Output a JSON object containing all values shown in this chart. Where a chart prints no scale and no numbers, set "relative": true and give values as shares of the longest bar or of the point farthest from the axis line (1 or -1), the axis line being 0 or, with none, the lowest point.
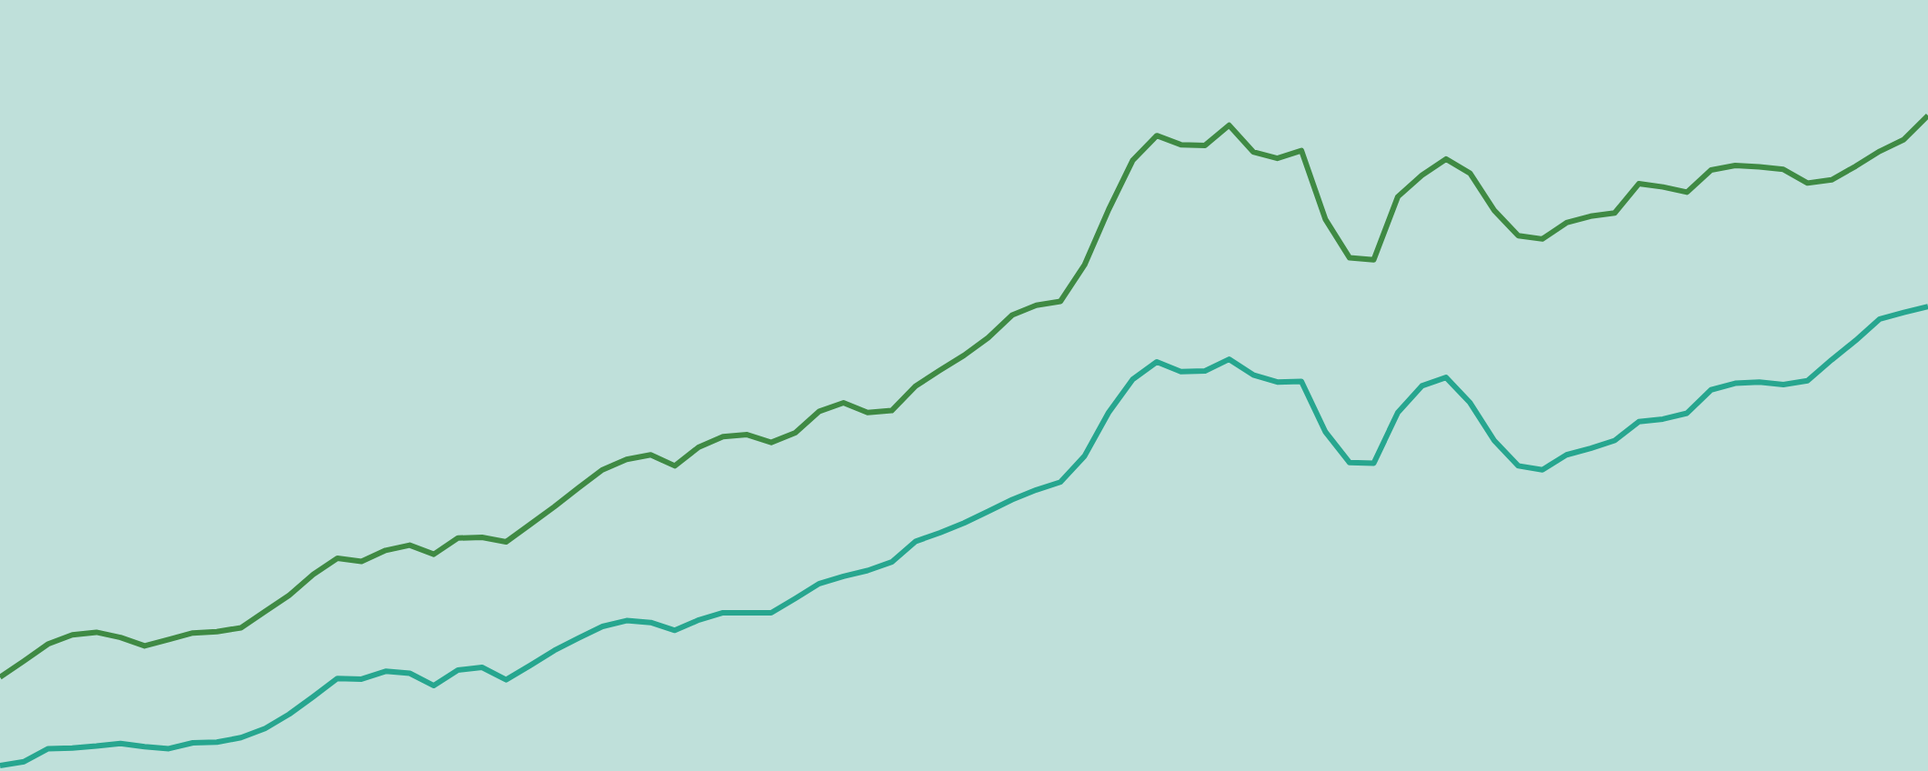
{
  "chart_data": {
    "type": "line",
    "relative": true,
    "categories": [
      null,
      null,
      null,
      null,
      null,
      null,
      null,
      null,
      null,
      null,
      null,
      null,
      null,
      null,
      null,
      null,
      null,
      null,
      null,
      null,
      null,
      null,
      null,
      null,
      null,
      null,
      null,
      null,
      null,
      null,
      null,
      null,
      null,
      null,
      null,
      null,
      null,
      null,
      null,
      null,
      null,
      null,
      null,
      null,
      null,
      null,
      null,
      null,
      null,
      null,
      null,
      null,
      null,
      null,
      null,
      null,
      null,
      null,
      null,
      null,
      null,
      null,
      null,
      null,
      null,
      null,
      null,
      null,
      null,
      null,
      null,
      null,
      null,
      null,
      null,
      null,
      null,
      null,
      null,
      null,
      null
    ],
    "series": [
      {
        "color": "#3f8a44",
        "values": [
          0.136,
          0.161,
          0.187,
          0.201,
          0.205,
          0.197,
          0.184,
          0.194,
          0.204,
          0.206,
          0.212,
          0.237,
          0.262,
          0.294,
          0.319,
          0.314,
          0.331,
          0.339,
          0.325,
          0.35,
          0.351,
          0.344,
          0.371,
          0.398,
          0.427,
          0.455,
          0.471,
          0.478,
          0.461,
          0.49,
          0.506,
          0.509,
          0.497,
          0.512,
          0.545,
          0.558,
          0.543,
          0.546,
          0.584,
          0.608,
          0.631,
          0.658,
          0.693,
          0.708,
          0.714,
          0.77,
          0.855,
          0.931,
          0.969,
          0.955,
          0.954,
          0.985,
          0.944,
          0.934,
          0.946,
          0.84,
          0.781,
          0.778,
          0.875,
          0.908,
          0.933,
          0.911,
          0.854,
          0.815,
          0.81,
          0.835,
          0.845,
          0.85,
          0.895,
          0.89,
          0.882,
          0.916,
          0.923,
          0.921,
          0.917,
          0.896,
          0.901,
          0.922,
          0.945,
          0.963,
          1.0
        ]
      },
      {
        "color": "#27a68f",
        "values": [
          0.0,
          0.006,
          0.026,
          0.027,
          0.03,
          0.034,
          0.029,
          0.026,
          0.035,
          0.036,
          0.043,
          0.057,
          0.079,
          0.106,
          0.134,
          0.133,
          0.145,
          0.142,
          0.123,
          0.147,
          0.151,
          0.132,
          0.154,
          0.177,
          0.196,
          0.214,
          0.223,
          0.22,
          0.208,
          0.224,
          0.235,
          0.235,
          0.235,
          0.257,
          0.28,
          0.291,
          0.3,
          0.313,
          0.345,
          0.358,
          0.373,
          0.391,
          0.409,
          0.424,
          0.436,
          0.476,
          0.543,
          0.594,
          0.621,
          0.606,
          0.607,
          0.625,
          0.601,
          0.59,
          0.591,
          0.513,
          0.466,
          0.465,
          0.543,
          0.584,
          0.597,
          0.558,
          0.5,
          0.461,
          0.455,
          0.478,
          0.488,
          0.5,
          0.529,
          0.533,
          0.542,
          0.578,
          0.588,
          0.59,
          0.586,
          0.592,
          0.624,
          0.654,
          0.687,
          0.697,
          0.706
        ]
      }
    ]
  }
}
